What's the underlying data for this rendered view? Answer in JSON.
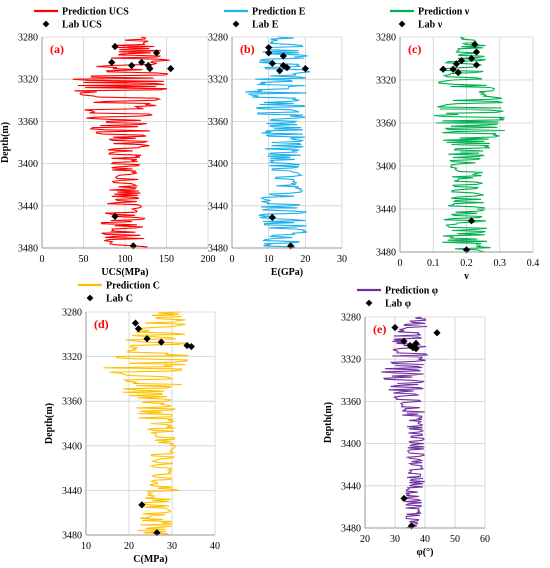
{
  "figure": {
    "panels_meta": "five depth-log panels"
  },
  "chart_data": [
    {
      "type": "line",
      "panel_label": "(a)",
      "xlabel": "UCS(MPa)",
      "ylabel": "Depth(m)",
      "xlim": [
        0,
        200
      ],
      "ylim": [
        3480,
        3280
      ],
      "x_ticks": [
        "0",
        "50",
        "100",
        "150",
        "200"
      ],
      "y_ticks": [
        "3280",
        "3320",
        "3360",
        "3400",
        "3440",
        "3480"
      ],
      "grid": true,
      "legend_position": "top",
      "series": [
        {
          "name": "Prediction UCS",
          "kind": "line",
          "color": "#ff0000",
          "anchors": [
            [
              115,
              3280
            ],
            [
              110,
              3290
            ],
            [
              120,
              3300
            ],
            [
              105,
              3310
            ],
            [
              100,
              3320
            ],
            [
              95,
              3330
            ],
            [
              95,
              3340
            ],
            [
              90,
              3350
            ],
            [
              95,
              3360
            ],
            [
              95,
              3370
            ],
            [
              105,
              3380
            ],
            [
              100,
              3390
            ],
            [
              100,
              3400
            ],
            [
              100,
              3410
            ],
            [
              100,
              3420
            ],
            [
              100,
              3430
            ],
            [
              100,
              3440
            ],
            [
              95,
              3450
            ],
            [
              100,
              3460
            ],
            [
              100,
              3470
            ],
            [
              100,
              3480
            ]
          ],
          "amplitude": [
            8,
            30,
            40,
            45,
            65,
            60,
            45,
            50,
            40,
            35,
            30,
            20,
            18,
            16,
            18,
            20,
            22,
            28,
            30,
            30,
            28
          ]
        },
        {
          "name": "Lab UCS",
          "kind": "marker",
          "color": "#000000",
          "points": [
            [
              88,
              3289
            ],
            [
              138,
              3295
            ],
            [
              120,
              3304
            ],
            [
              84,
              3304
            ],
            [
              108,
              3307
            ],
            [
              128,
              3307
            ],
            [
              130,
              3310
            ],
            [
              155,
              3310
            ],
            [
              88,
              3450
            ],
            [
              110,
              3478
            ]
          ]
        }
      ]
    },
    {
      "type": "line",
      "panel_label": "(b)",
      "xlabel": "E(GPa)",
      "ylabel": "",
      "xlim": [
        0,
        30
      ],
      "ylim": [
        3480,
        3280
      ],
      "x_ticks": [
        "0",
        "10",
        "20",
        "30"
      ],
      "y_ticks": [
        "3280",
        "3320",
        "3360",
        "3400",
        "3440",
        "3480"
      ],
      "grid": true,
      "legend_position": "top",
      "series": [
        {
          "name": "Prediction E",
          "kind": "line",
          "color": "#1cb0ec",
          "anchors": [
            [
              14,
              3280
            ],
            [
              14,
              3290
            ],
            [
              14,
              3300
            ],
            [
              14,
              3310
            ],
            [
              13,
              3320
            ],
            [
              12,
              3330
            ],
            [
              13,
              3340
            ],
            [
              13,
              3350
            ],
            [
              14,
              3360
            ],
            [
              14,
              3370
            ],
            [
              14,
              3380
            ],
            [
              14,
              3390
            ],
            [
              14,
              3400
            ],
            [
              14,
              3410
            ],
            [
              14,
              3420
            ],
            [
              14,
              3430
            ],
            [
              13,
              3440
            ],
            [
              14,
              3450
            ],
            [
              14,
              3460
            ],
            [
              14,
              3470
            ],
            [
              14,
              3480
            ]
          ],
          "amplitude": [
            3,
            6,
            7,
            8,
            8,
            9,
            8,
            7,
            6,
            6,
            6,
            5,
            5,
            5,
            5,
            6,
            7,
            7,
            7,
            7,
            6
          ]
        },
        {
          "name": "Lab E",
          "kind": "marker",
          "color": "#000000",
          "points": [
            [
              10,
              3290
            ],
            [
              10,
              3295
            ],
            [
              14,
              3298
            ],
            [
              11,
              3305
            ],
            [
              14,
              3307
            ],
            [
              15,
              3309
            ],
            [
              20,
              3310
            ],
            [
              13,
              3312
            ],
            [
              11,
              3451
            ],
            [
              16,
              3478
            ]
          ]
        }
      ]
    },
    {
      "type": "line",
      "panel_label": "(c)",
      "xlabel": "ν",
      "ylabel": "",
      "xlim": [
        0,
        0.4
      ],
      "ylim": [
        3480,
        3280
      ],
      "x_ticks": [
        "0",
        "0.1",
        "0.2",
        "0.3",
        "0.4"
      ],
      "y_ticks": [
        "3280",
        "3320",
        "3360",
        "3400",
        "3440",
        "3480"
      ],
      "grid": true,
      "legend_position": "top",
      "series": [
        {
          "name": "Prediction ν",
          "kind": "line",
          "color": "#00b050",
          "anchors": [
            [
              0.2,
              3280
            ],
            [
              0.22,
              3290
            ],
            [
              0.2,
              3300
            ],
            [
              0.18,
              3310
            ],
            [
              0.19,
              3320
            ],
            [
              0.2,
              3330
            ],
            [
              0.22,
              3340
            ],
            [
              0.22,
              3350
            ],
            [
              0.22,
              3360
            ],
            [
              0.22,
              3370
            ],
            [
              0.21,
              3380
            ],
            [
              0.2,
              3390
            ],
            [
              0.2,
              3400
            ],
            [
              0.2,
              3410
            ],
            [
              0.2,
              3420
            ],
            [
              0.2,
              3430
            ],
            [
              0.2,
              3440
            ],
            [
              0.2,
              3450
            ],
            [
              0.2,
              3460
            ],
            [
              0.2,
              3470
            ],
            [
              0.21,
              3480
            ]
          ],
          "amplitude": [
            0.02,
            0.05,
            0.06,
            0.07,
            0.08,
            0.09,
            0.1,
            0.12,
            0.12,
            0.1,
            0.08,
            0.06,
            0.05,
            0.05,
            0.05,
            0.06,
            0.06,
            0.07,
            0.07,
            0.08,
            0.06
          ]
        },
        {
          "name": "Lab ν",
          "kind": "marker",
          "color": "#000000",
          "points": [
            [
              0.225,
              3287
            ],
            [
              0.23,
              3294
            ],
            [
              0.215,
              3300
            ],
            [
              0.185,
              3302
            ],
            [
              0.17,
              3305
            ],
            [
              0.23,
              3306
            ],
            [
              0.13,
              3310
            ],
            [
              0.16,
              3310
            ],
            [
              0.175,
              3313
            ],
            [
              0.215,
              3451
            ],
            [
              0.2,
              3478
            ]
          ]
        }
      ]
    },
    {
      "type": "line",
      "panel_label": "(d)",
      "xlabel": "C(MPa)",
      "ylabel": "Depth(m)",
      "xlim": [
        10,
        40
      ],
      "ylim": [
        3480,
        3280
      ],
      "x_ticks": [
        "10",
        "20",
        "30",
        "40"
      ],
      "y_ticks": [
        "3280",
        "3320",
        "3360",
        "3400",
        "3440",
        "3480"
      ],
      "grid": true,
      "legend_position": "top",
      "series": [
        {
          "name": "Prediction C",
          "kind": "line",
          "color": "#ffc000",
          "anchors": [
            [
              29,
              3280
            ],
            [
              28,
              3290
            ],
            [
              27,
              3300
            ],
            [
              26,
              3310
            ],
            [
              25,
              3320
            ],
            [
              24,
              3330
            ],
            [
              25,
              3340
            ],
            [
              25,
              3350
            ],
            [
              25,
              3360
            ],
            [
              26,
              3370
            ],
            [
              27,
              3380
            ],
            [
              28,
              3390
            ],
            [
              28,
              3400
            ],
            [
              28,
              3410
            ],
            [
              28,
              3420
            ],
            [
              28,
              3430
            ],
            [
              28,
              3440
            ],
            [
              27,
              3450
            ],
            [
              27,
              3460
            ],
            [
              26,
              3470
            ],
            [
              26,
              3480
            ]
          ],
          "amplitude": [
            3,
            6,
            7,
            8,
            9,
            10,
            8,
            7,
            6,
            5,
            4,
            3,
            3,
            3,
            3,
            3,
            4,
            4,
            4,
            4,
            4
          ]
        },
        {
          "name": "Lab C",
          "kind": "marker",
          "color": "#000000",
          "points": [
            [
              21.5,
              3290
            ],
            [
              22.2,
              3295
            ],
            [
              24.2,
              3304
            ],
            [
              27.5,
              3307
            ],
            [
              33.5,
              3310
            ],
            [
              34.5,
              3311
            ],
            [
              23,
              3453
            ],
            [
              26.5,
              3478
            ]
          ]
        }
      ]
    },
    {
      "type": "line",
      "panel_label": "(e)",
      "xlabel": "φ(°)",
      "ylabel": "Depth(m)",
      "xlim": [
        20,
        60
      ],
      "ylim": [
        3480,
        3280
      ],
      "x_ticks": [
        "20",
        "30",
        "40",
        "50",
        "60"
      ],
      "y_ticks": [
        "3280",
        "3320",
        "3360",
        "3400",
        "3440",
        "3480"
      ],
      "grid": true,
      "legend_position": "top",
      "series": [
        {
          "name": "Prediction φ",
          "kind": "line",
          "color": "#7030a0",
          "anchors": [
            [
              38,
              3280
            ],
            [
              36,
              3290
            ],
            [
              35,
              3300
            ],
            [
              35,
              3310
            ],
            [
              34,
              3320
            ],
            [
              33,
              3330
            ],
            [
              33,
              3340
            ],
            [
              34,
              3350
            ],
            [
              35,
              3360
            ],
            [
              36,
              3370
            ],
            [
              36,
              3380
            ],
            [
              37,
              3390
            ],
            [
              37,
              3400
            ],
            [
              37,
              3410
            ],
            [
              37,
              3420
            ],
            [
              37,
              3430
            ],
            [
              37,
              3440
            ],
            [
              36,
              3450
            ],
            [
              36,
              3460
            ],
            [
              36,
              3470
            ],
            [
              36,
              3480
            ]
          ],
          "amplitude": [
            2,
            5,
            6,
            6,
            7,
            8,
            7,
            6,
            5,
            4,
            3,
            3,
            3,
            3,
            3,
            3,
            3,
            3,
            3,
            3,
            3
          ]
        },
        {
          "name": "Lab φ",
          "kind": "marker",
          "color": "#000000",
          "points": [
            [
              30,
              3290
            ],
            [
              44,
              3295
            ],
            [
              33,
              3303
            ],
            [
              37,
              3305
            ],
            [
              35,
              3307
            ],
            [
              36,
              3309
            ],
            [
              37,
              3310
            ],
            [
              33,
              3452
            ],
            [
              35.5,
              3478
            ]
          ]
        }
      ]
    }
  ]
}
